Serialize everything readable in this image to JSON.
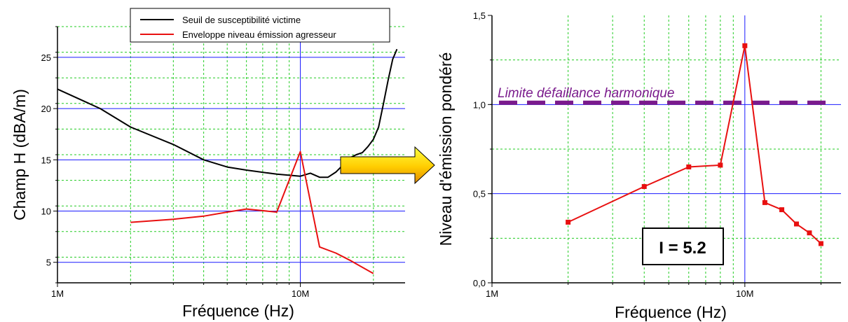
{
  "colors": {
    "threshold": "#000000",
    "emission": "#e81010",
    "limit": "#7a1a8c",
    "major_grid": "#1a1aff",
    "minor_grid": "#22cc22",
    "arrow_fill_start": "#ffff00",
    "arrow_fill_end": "#e8a000"
  },
  "chart_data": [
    {
      "type": "line",
      "x_scale": "log",
      "xlim": [
        1000000,
        27000000
      ],
      "ylim": [
        3,
        28
      ],
      "xlabel": "Fréquence (Hz)",
      "ylabel": "Champ H (dBA/m)",
      "x_ticks": [
        {
          "value": 1000000,
          "label": "1M"
        },
        {
          "value": 10000000,
          "label": "10M"
        }
      ],
      "y_ticks": [
        {
          "value": 5,
          "label": "5"
        },
        {
          "value": 10,
          "label": "10"
        },
        {
          "value": 15,
          "label": "15"
        },
        {
          "value": 20,
          "label": "20"
        },
        {
          "value": 25,
          "label": "25"
        }
      ],
      "grid": true,
      "legend_placement": "top-right",
      "series": [
        {
          "name": "Seuil de susceptibilité victime",
          "color": "#000000",
          "points": [
            [
              1000000,
              21.9
            ],
            [
              1500000,
              20.0
            ],
            [
              2000000,
              18.2
            ],
            [
              3000000,
              16.5
            ],
            [
              4000000,
              15.0
            ],
            [
              5000000,
              14.3
            ],
            [
              6000000,
              14.0
            ],
            [
              8000000,
              13.6
            ],
            [
              10000000,
              13.4
            ],
            [
              11000000,
              13.7
            ],
            [
              12000000,
              13.3
            ],
            [
              13000000,
              13.3
            ],
            [
              14000000,
              13.8
            ],
            [
              15000000,
              14.5
            ],
            [
              16000000,
              15.2
            ],
            [
              17000000,
              15.5
            ],
            [
              18000000,
              15.7
            ],
            [
              19000000,
              16.3
            ],
            [
              20000000,
              17.0
            ],
            [
              21000000,
              18.2
            ],
            [
              22000000,
              20.5
            ],
            [
              23000000,
              22.8
            ],
            [
              24000000,
              24.8
            ],
            [
              25000000,
              25.8
            ]
          ]
        },
        {
          "name": "Enveloppe niveau émission agresseur",
          "color": "#e81010",
          "points": [
            [
              2000000,
              8.9
            ],
            [
              3000000,
              9.2
            ],
            [
              4000000,
              9.5
            ],
            [
              5000000,
              9.9
            ],
            [
              6000000,
              10.2
            ],
            [
              8000000,
              9.9
            ],
            [
              10000000,
              15.8
            ],
            [
              12000000,
              6.5
            ],
            [
              14000000,
              5.9
            ],
            [
              16000000,
              5.2
            ],
            [
              20000000,
              3.9
            ]
          ]
        }
      ]
    },
    {
      "type": "line",
      "x_scale": "log",
      "xlim": [
        1000000,
        24000000
      ],
      "ylim": [
        0,
        1.5
      ],
      "xlabel": "Fréquence (Hz)",
      "ylabel": "Niveau d'émission pondéré",
      "x_ticks": [
        {
          "value": 1000000,
          "label": "1M"
        },
        {
          "value": 10000000,
          "label": "10M"
        }
      ],
      "y_ticks": [
        {
          "value": 0,
          "label": "0,0"
        },
        {
          "value": 0.5,
          "label": "0,5"
        },
        {
          "value": 1.0,
          "label": "1,0"
        },
        {
          "value": 1.5,
          "label": "1,5"
        }
      ],
      "grid": true,
      "series": [
        {
          "color": "#e81010",
          "markers": true,
          "points": [
            [
              2000000,
              0.34
            ],
            [
              4000000,
              0.54
            ],
            [
              6000000,
              0.65
            ],
            [
              8000000,
              0.66
            ],
            [
              10000000,
              1.33
            ],
            [
              12000000,
              0.45
            ],
            [
              14000000,
              0.41
            ],
            [
              16000000,
              0.33
            ],
            [
              18000000,
              0.28
            ],
            [
              20000000,
              0.22
            ]
          ]
        }
      ],
      "limit_line": {
        "value": 1.01,
        "label": "Limite défaillance harmonique",
        "color": "#7a1a8c"
      },
      "annotation": "I = 5.2"
    }
  ]
}
